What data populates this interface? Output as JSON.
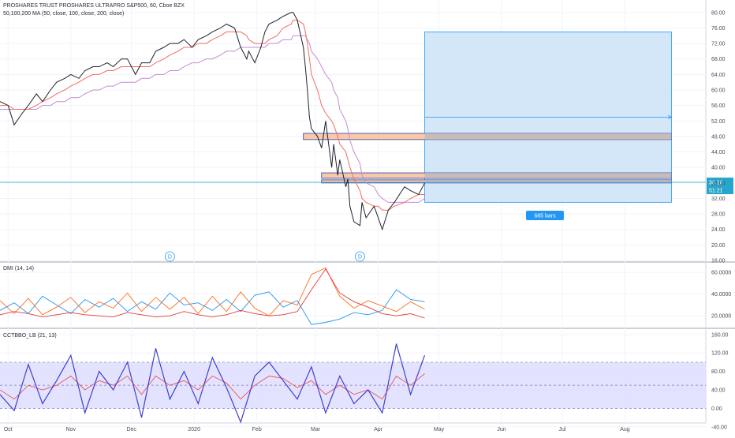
{
  "legend": {
    "main_title": "PROSHARES TRUST PROSHARES ULTRAPRO S&P500, 60, Cboe BZX",
    "ma_label": "50,100,200 MA (50, close, 100, close, 200, close)",
    "dmi_label": "DMI (14, 14)",
    "cct_label": "CCTBBO_LB (21, 13)"
  },
  "colors": {
    "price": "#1e222d",
    "ma_fast": "#f26c62",
    "ma_slow": "#c58ad4",
    "dmi_plus": "#2196f3",
    "dmi_minus": "#ff6d1f",
    "adx": "#e53935",
    "cct": "#3f3fd1",
    "cct_signal": "#ef5350",
    "band_fill": "#dcdcff",
    "range_fill": "#cce3f7",
    "range_border": "#2196f3",
    "zone_fill": "#f9c8a6",
    "zone_border": "#3f51b5",
    "price_line": "#26a6cc"
  },
  "annotations": {
    "bars_label": "685 bars",
    "dividend_marker": "D",
    "last_price": "36.16",
    "countdown": "51:21"
  },
  "chart_data": [
    {
      "type": "line",
      "name": "price",
      "x": [
        "2019-09-27",
        "2019-10-01",
        "2019-10-04",
        "2019-10-08",
        "2019-10-11",
        "2019-10-15",
        "2019-10-18",
        "2019-10-22",
        "2019-10-25",
        "2019-10-29",
        "2019-11-01",
        "2019-11-05",
        "2019-11-08",
        "2019-11-12",
        "2019-11-15",
        "2019-11-19",
        "2019-11-22",
        "2019-11-26",
        "2019-11-29",
        "2019-12-03",
        "2019-12-06",
        "2019-12-10",
        "2019-12-13",
        "2019-12-17",
        "2019-12-20",
        "2019-12-24",
        "2019-12-27",
        "2019-12-31",
        "2020-01-03",
        "2020-01-07",
        "2020-01-10",
        "2020-01-14",
        "2020-01-17",
        "2020-01-21",
        "2020-01-24",
        "2020-01-27",
        "2020-01-28",
        "2020-01-31",
        "2020-02-03",
        "2020-02-05",
        "2020-02-07",
        "2020-02-11",
        "2020-02-14",
        "2020-02-18",
        "2020-02-19",
        "2020-02-21",
        "2020-02-24",
        "2020-02-25",
        "2020-02-26",
        "2020-02-27",
        "2020-02-28",
        "2020-03-02",
        "2020-03-04",
        "2020-03-06",
        "2020-03-09",
        "2020-03-10",
        "2020-03-12",
        "2020-03-13",
        "2020-03-16",
        "2020-03-17",
        "2020-03-18",
        "2020-03-20",
        "2020-03-23",
        "2020-03-24",
        "2020-03-26",
        "2020-03-30",
        "2020-04-01",
        "2020-04-03",
        "2020-04-06",
        "2020-04-09",
        "2020-04-14",
        "2020-04-17",
        "2020-04-21",
        "2020-04-24"
      ],
      "y": [
        57,
        56,
        51,
        54,
        56,
        59,
        57,
        60,
        62,
        63,
        64,
        63,
        65,
        66,
        66,
        67,
        66,
        68,
        68,
        64,
        67,
        67,
        70,
        71,
        72,
        72,
        73,
        71,
        73,
        74,
        75,
        76,
        77,
        76,
        71,
        68,
        70,
        67,
        71,
        75,
        77,
        78,
        79,
        80,
        80,
        78,
        71,
        66,
        60,
        53,
        50,
        48,
        45,
        52,
        40,
        46,
        38,
        42,
        35,
        37,
        30,
        26,
        25,
        31,
        27,
        30,
        27,
        24,
        29,
        31,
        35,
        34,
        33,
        36
      ],
      "xlim": [
        "2019-09-27",
        "2020-09-10"
      ],
      "ylim": [
        16,
        82
      ],
      "y_ticks": [
        "80.00",
        "76.00",
        "72.00",
        "68.00",
        "64.00",
        "60.00",
        "56.00",
        "52.00",
        "48.00",
        "44.00",
        "40.00",
        "36.00",
        "32.00",
        "28.00",
        "24.00",
        "20.00",
        "16.00"
      ],
      "x_ticks": [
        "Oct",
        "Nov",
        "Dec",
        "2020",
        "Feb",
        "Mar",
        "Apr",
        "May",
        "Jun",
        "Jul",
        "Aug"
      ],
      "x_tick_dates": [
        "2019-10-01",
        "2019-11-01",
        "2019-12-01",
        "2020-01-01",
        "2020-02-01",
        "2020-03-01",
        "2020-04-01",
        "2020-05-01",
        "2020-06-01",
        "2020-07-01",
        "2020-08-01"
      ],
      "moving_averages": [
        {
          "y": [
            56,
            56,
            55,
            55,
            55,
            56,
            57,
            58,
            59,
            60,
            61,
            62,
            63,
            64,
            64,
            65,
            65,
            66,
            66,
            66,
            66,
            66,
            67,
            68,
            69,
            70,
            71,
            71,
            72,
            72,
            73,
            74,
            75,
            75,
            75,
            74,
            73,
            72,
            72,
            72,
            73,
            74,
            76,
            77,
            78,
            78,
            77,
            75,
            72,
            68,
            64,
            60,
            56,
            54,
            52,
            51,
            48,
            46,
            44,
            42,
            40,
            37,
            34,
            32,
            31,
            30,
            30,
            29,
            29,
            30,
            31,
            32,
            33,
            33
          ]
        },
        {
          "y": [
            55,
            55,
            55,
            55,
            55,
            55,
            56,
            56,
            57,
            57,
            58,
            58,
            59,
            60,
            60,
            61,
            61,
            62,
            62,
            62,
            63,
            63,
            64,
            64,
            65,
            65,
            66,
            67,
            67,
            68,
            68,
            69,
            70,
            70,
            71,
            71,
            71,
            71,
            71,
            71,
            72,
            72,
            73,
            73,
            74,
            74,
            74,
            74,
            73,
            72,
            70,
            68,
            66,
            64,
            62,
            60,
            58,
            55,
            52,
            50,
            47,
            44,
            41,
            38,
            36,
            35,
            33,
            32,
            31,
            31,
            31,
            31,
            31,
            32
          ]
        }
      ],
      "range_box": {
        "x": [
          "2020-04-24",
          "2020-08-24"
        ],
        "y": [
          31,
          75
        ],
        "target": 53
      },
      "zones": [
        {
          "x": [
            "2020-02-24",
            "2020-08-24"
          ],
          "y": [
            47.2,
            48.8
          ]
        },
        {
          "x": [
            "2020-03-04",
            "2020-08-24"
          ],
          "y": [
            37.2,
            38.6
          ]
        },
        {
          "x": [
            "2020-03-04",
            "2020-08-24"
          ],
          "y": [
            36.0,
            36.8
          ]
        }
      ],
      "dividend_dates": [
        "2019-12-20",
        "2020-03-23"
      ],
      "last_price_value": 36.16
    },
    {
      "type": "line",
      "name": "DMI (14, 14)",
      "x": [
        "2019-09-27",
        "2019-10-04",
        "2019-10-11",
        "2019-10-18",
        "2019-10-25",
        "2019-11-01",
        "2019-11-08",
        "2019-11-15",
        "2019-11-22",
        "2019-11-29",
        "2019-12-06",
        "2019-12-13",
        "2019-12-20",
        "2019-12-27",
        "2020-01-03",
        "2020-01-10",
        "2020-01-17",
        "2020-01-24",
        "2020-01-31",
        "2020-02-07",
        "2020-02-14",
        "2020-02-21",
        "2020-02-28",
        "2020-03-06",
        "2020-03-13",
        "2020-03-20",
        "2020-03-27",
        "2020-04-03",
        "2020-04-10",
        "2020-04-17",
        "2020-04-24"
      ],
      "series": [
        {
          "name": "+DI",
          "values": [
            25,
            32,
            22,
            38,
            30,
            22,
            35,
            28,
            36,
            24,
            33,
            26,
            41,
            30,
            32,
            25,
            35,
            24,
            39,
            42,
            28,
            34,
            12,
            14,
            17,
            23,
            21,
            25,
            44,
            35,
            33
          ]
        },
        {
          "name": "-DI",
          "values": [
            34,
            22,
            36,
            21,
            28,
            37,
            23,
            33,
            27,
            41,
            24,
            37,
            26,
            37,
            22,
            38,
            24,
            42,
            27,
            20,
            34,
            30,
            58,
            64,
            38,
            27,
            34,
            29,
            24,
            33,
            26
          ]
        },
        {
          "name": "ADX",
          "values": [
            21,
            24,
            22,
            19,
            21,
            23,
            21,
            20,
            19,
            23,
            21,
            19,
            20,
            24,
            21,
            19,
            21,
            25,
            22,
            20,
            21,
            24,
            44,
            63,
            41,
            33,
            28,
            22,
            20,
            22,
            18
          ]
        }
      ],
      "ylim": [
        10,
        68
      ],
      "y_ticks": [
        "60.0000",
        "40.0000",
        "20.0000"
      ]
    },
    {
      "type": "line",
      "name": "CCTBBO_LB (21, 13)",
      "x": [
        "2019-09-27",
        "2019-10-04",
        "2019-10-11",
        "2019-10-18",
        "2019-10-25",
        "2019-11-01",
        "2019-11-08",
        "2019-11-15",
        "2019-11-22",
        "2019-11-29",
        "2019-12-06",
        "2019-12-13",
        "2019-12-20",
        "2019-12-27",
        "2020-01-03",
        "2020-01-10",
        "2020-01-17",
        "2020-01-24",
        "2020-01-31",
        "2020-02-07",
        "2020-02-14",
        "2020-02-21",
        "2020-02-28",
        "2020-03-06",
        "2020-03-13",
        "2020-03-20",
        "2020-03-27",
        "2020-04-03",
        "2020-04-10",
        "2020-04-17",
        "2020-04-24"
      ],
      "series": [
        {
          "name": "oscillator",
          "values": [
            30,
            -5,
            95,
            10,
            60,
            115,
            -10,
            80,
            40,
            100,
            -20,
            130,
            20,
            80,
            10,
            110,
            45,
            -30,
            70,
            100,
            60,
            20,
            90,
            -10,
            70,
            10,
            40,
            -10,
            140,
            30,
            115
          ]
        },
        {
          "name": "signal",
          "values": [
            40,
            20,
            50,
            40,
            50,
            70,
            40,
            60,
            50,
            70,
            30,
            70,
            50,
            60,
            40,
            70,
            55,
            20,
            50,
            70,
            65,
            45,
            60,
            30,
            50,
            30,
            40,
            20,
            70,
            50,
            75
          ]
        }
      ],
      "bands": [
        0,
        50,
        100
      ],
      "ylim": [
        -25,
        170
      ],
      "y_ticks": [
        "160.00",
        "120.00",
        "80.00",
        "40.00",
        "0.00",
        "-40.00"
      ]
    }
  ]
}
